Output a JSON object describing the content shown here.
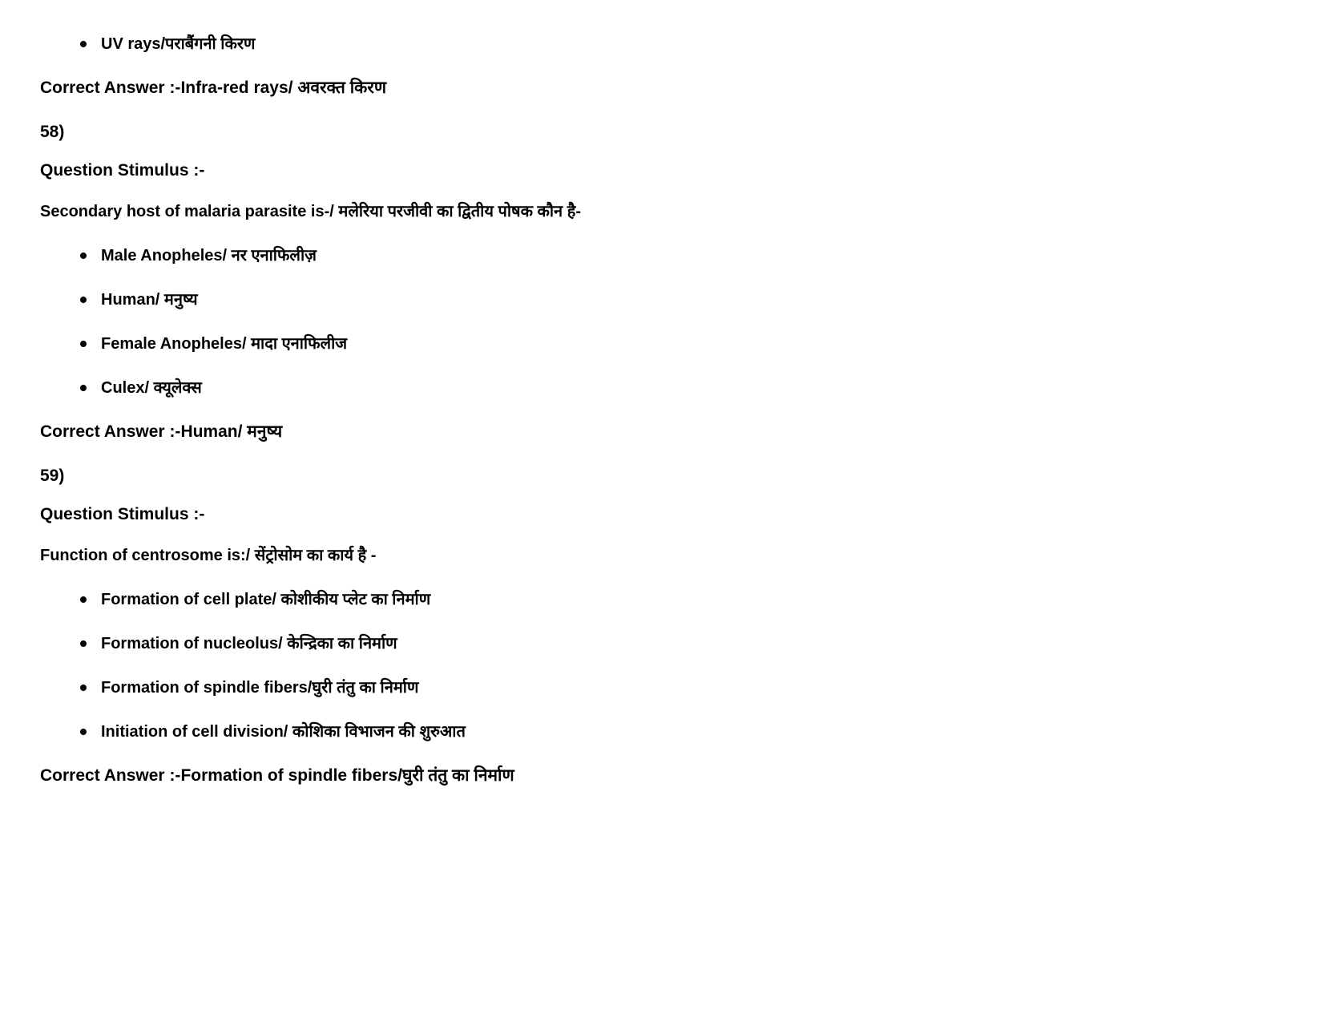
{
  "question57": {
    "last_option": "UV rays/पराबैंगनी किरण",
    "correct_answer_label": "Correct Answer :-",
    "correct_answer": "Infra-red rays/ अवरक्त किरण"
  },
  "question58": {
    "number": "58)",
    "stimulus_label": "Question Stimulus :-",
    "question_text": "Secondary host of malaria parasite is-/ मलेरिया परजीवी का द्वितीय पोषक कौन है-",
    "options": [
      "Male Anopheles/ नर एनाफिलीज़",
      "Human/ मनुष्य",
      "Female Anopheles/ मादा एनाफिलीज",
      "Culex/ क्यूलेक्स"
    ],
    "correct_answer_label": "Correct Answer :-",
    "correct_answer": "Human/ मनुष्य"
  },
  "question59": {
    "number": "59)",
    "stimulus_label": "Question Stimulus :-",
    "question_text": "Function of centrosome is:/ सेंट्रोसोम का कार्य है -",
    "options": [
      "Formation of cell plate/ कोशीकीय प्लेट का निर्माण",
      "Formation of nucleolus/ केन्द्रिका का निर्माण",
      "Formation of spindle fibers/घुरी तंतु का निर्माण",
      "Initiation of cell division/ कोशिका विभाजन की शुरुआत"
    ],
    "correct_answer_label": "Correct Answer :-",
    "correct_answer": "Formation of spindle fibers/घुरी तंतु का निर्माण"
  }
}
